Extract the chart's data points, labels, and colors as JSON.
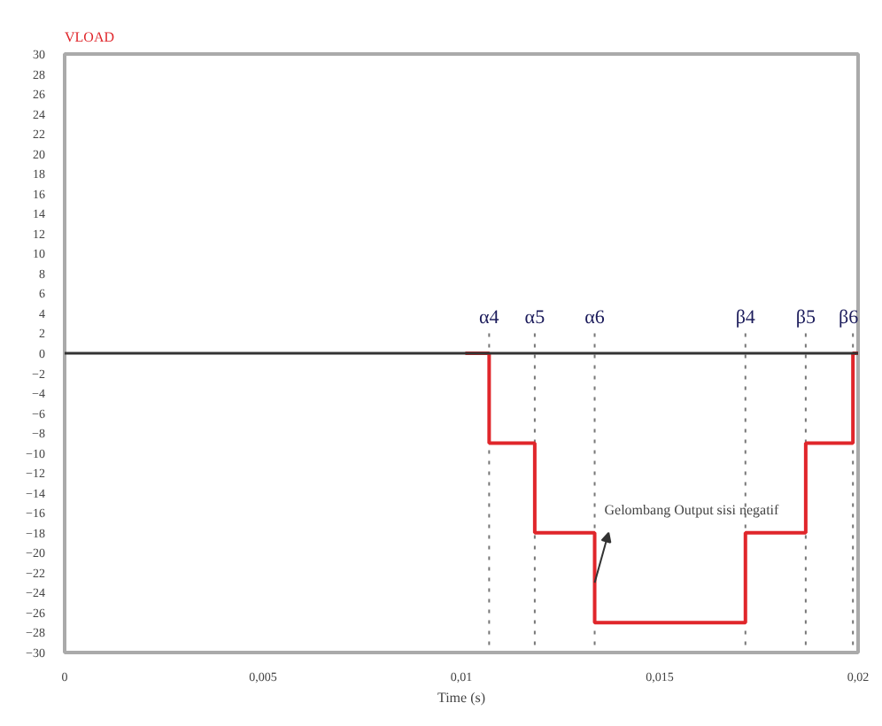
{
  "chart_data": {
    "type": "step",
    "ylabel": "VLOAD",
    "xlabel": "Time (s)",
    "x": [
      0.0101,
      0.0107,
      0.01185,
      0.01336,
      0.01716,
      0.01868,
      0.01987,
      0.02
    ],
    "series": [
      {
        "color": "#e0262b",
        "values": [
          0,
          -9,
          -18,
          -27,
          -18,
          -9,
          0,
          0
        ]
      }
    ],
    "xlim": [
      0,
      0.02
    ],
    "ylim": [
      -30,
      30
    ],
    "xticks": [
      0,
      {
        "value": 0.005,
        "label": "0,005"
      },
      {
        "value": 0.01,
        "label": "0,01"
      },
      {
        "value": 0.015,
        "label": "0,015"
      },
      {
        "value": 0.02,
        "label": "0,02"
      }
    ],
    "yticks": [
      -30,
      -28,
      -26,
      -24,
      -22,
      -20,
      -18,
      -16,
      -14,
      -12,
      -10,
      -8,
      -6,
      -4,
      -2,
      0,
      2,
      4,
      6,
      8,
      10,
      12,
      14,
      16,
      18,
      20,
      22,
      24,
      26,
      28,
      30
    ],
    "grid": false,
    "ref_lines": [
      {
        "axis": "y",
        "value": 0,
        "color": "#333333"
      },
      {
        "axis": "x",
        "value": 0.0107,
        "label": "α4",
        "line_style": "dotted"
      },
      {
        "axis": "x",
        "value": 0.01185,
        "label": "α5",
        "line_style": "dotted"
      },
      {
        "axis": "x",
        "value": 0.01336,
        "label": "α6",
        "line_style": "dotted"
      },
      {
        "axis": "x",
        "value": 0.01716,
        "label": "β4",
        "line_style": "dotted"
      },
      {
        "axis": "x",
        "value": 0.01868,
        "label": "β5",
        "line_style": "dotted"
      },
      {
        "axis": "x",
        "value": 0.01987,
        "label": "β6",
        "line_style": "dotted"
      }
    ],
    "annotations": [
      {
        "text": "Gelombang Output sisi negatif",
        "x": 0.01336,
        "y": -23
      }
    ]
  }
}
